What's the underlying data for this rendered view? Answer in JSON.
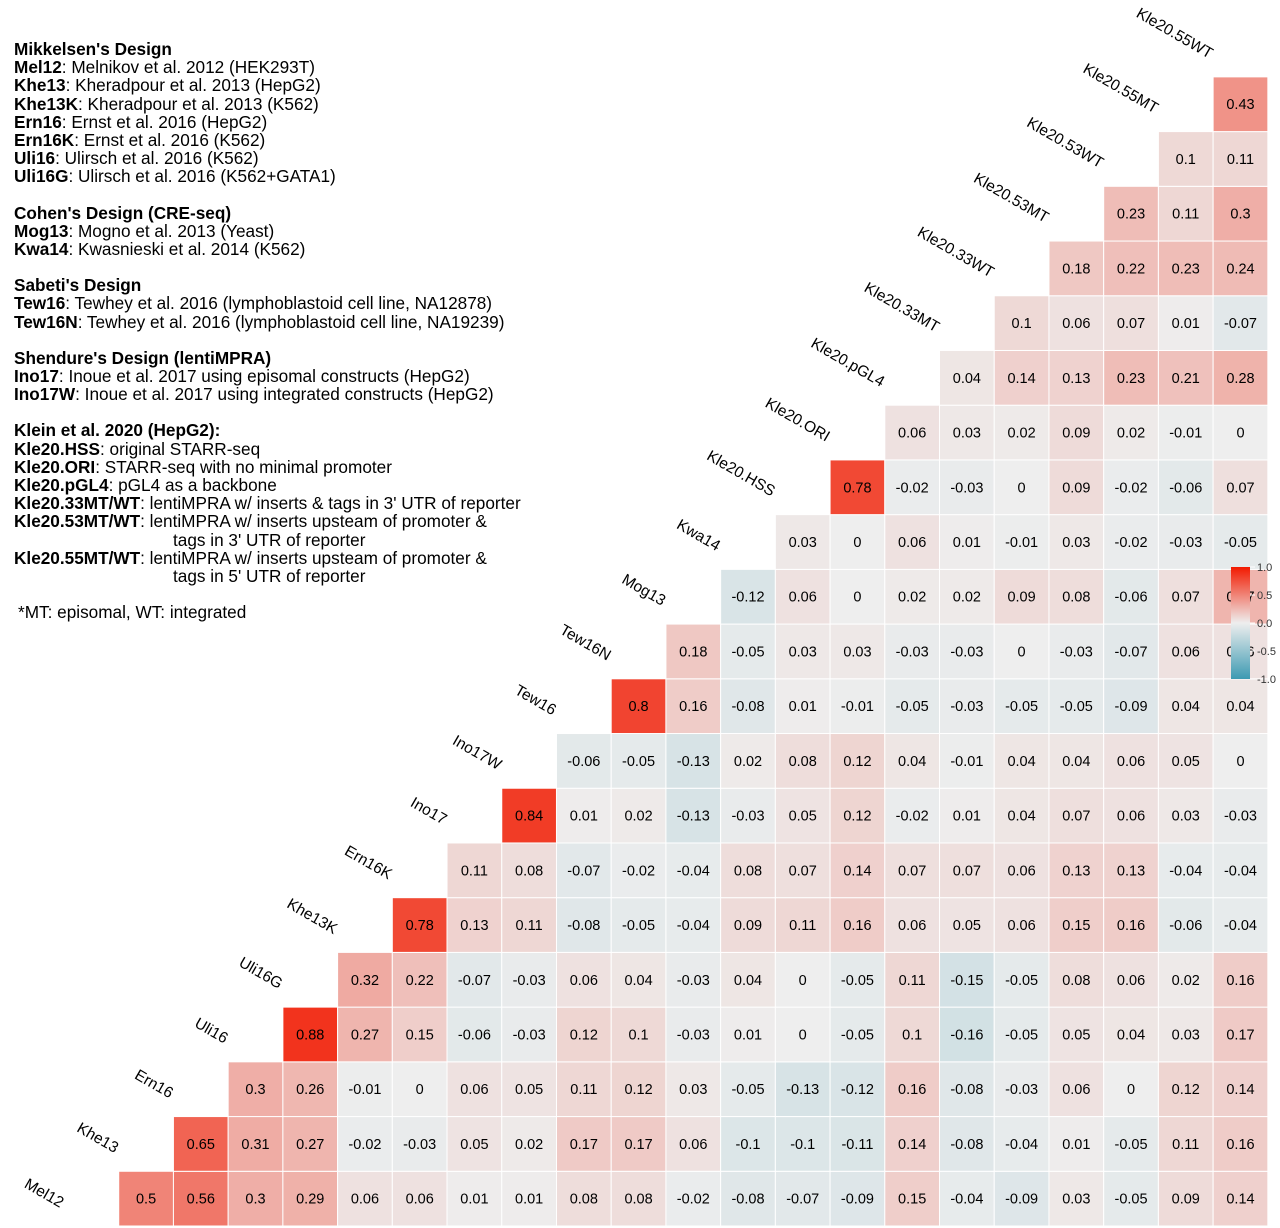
{
  "legend": {
    "sections": [
      {
        "heading": "Mikkelsen's Design",
        "entries": [
          {
            "key": "Mel12",
            "text": ": Melnikov et al. 2012 (HEK293T)"
          },
          {
            "key": "Khe13",
            "text": ": Kheradpour et al. 2013 (HepG2)"
          },
          {
            "key": "Khe13K",
            "text": ": Kheradpour et al. 2013 (K562)"
          },
          {
            "key": "Ern16",
            "text": ": Ernst et al. 2016 (HepG2)"
          },
          {
            "key": "Ern16K",
            "text": ": Ernst et al. 2016 (K562)"
          },
          {
            "key": "Uli16",
            "text": ": Ulirsch et al. 2016 (K562)"
          },
          {
            "key": "Uli16G",
            "text": ": Ulirsch et al. 2016 (K562+GATA1)"
          }
        ]
      },
      {
        "heading": "Cohen's Design (CRE-seq)",
        "entries": [
          {
            "key": "Mog13",
            "text": ": Mogno et al. 2013 (Yeast)"
          },
          {
            "key": "Kwa14",
            "text": ": Kwasnieski et al. 2014 (K562)"
          }
        ]
      },
      {
        "heading": "Sabeti's Design",
        "entries": [
          {
            "key": "Tew16",
            "text": ": Tewhey et al. 2016 (lymphoblastoid cell line, NA12878)"
          },
          {
            "key": "Tew16N",
            "text": ": Tewhey et al. 2016 (lymphoblastoid cell line, NA19239)"
          }
        ]
      },
      {
        "heading": "Shendure's Design (lentiMPRA)",
        "entries": [
          {
            "key": "Ino17",
            "text": ": Inoue et al. 2017 using episomal constructs (HepG2)"
          },
          {
            "key": "Ino17W",
            "text": ": Inoue et al. 2017 using integrated constructs (HepG2)"
          }
        ]
      },
      {
        "heading": "Klein et al. 2020 (HepG2):",
        "entries": [
          {
            "key": "Kle20.HSS",
            "text": ": original STARR-seq"
          },
          {
            "key": "Kle20.ORI",
            "text": ": STARR-seq with no minimal promoter"
          },
          {
            "key": "Kle20.pGL4",
            "text": ": pGL4 as a backbone"
          },
          {
            "key": "Kle20.33MT/WT",
            "text": ": lentiMPRA w/ inserts & tags in 3' UTR of reporter"
          },
          {
            "key": "Kle20.53MT/WT",
            "text": ": lentiMPRA w/ inserts upsteam of promoter &",
            "cont": "tags in 3' UTR of reporter"
          },
          {
            "key": "Kle20.55MT/WT",
            "text": ": lentiMPRA w/ inserts upsteam of promoter &",
            "cont": "tags in 5' UTR of reporter"
          }
        ]
      }
    ],
    "note": "*MT: episomal, WT: integrated"
  },
  "chart_data": {
    "type": "heatmap",
    "title": "",
    "labels": [
      "Mel12",
      "Khe13",
      "Ern16",
      "Uli16",
      "Uli16G",
      "Khe13K",
      "Ern16K",
      "Ino17",
      "Ino17W",
      "Tew16",
      "Tew16N",
      "Mog13",
      "Kwa14",
      "Kle20.HSS",
      "Kle20.ORI",
      "Kle20.pGL4",
      "Kle20.33MT",
      "Kle20.33WT",
      "Kle20.53MT",
      "Kle20.53WT",
      "Kle20.55MT",
      "Kle20.55WT"
    ],
    "values": [
      [
        "0.5",
        "0.56",
        "0.3",
        "0.29",
        "0.06",
        "0.06",
        "0.01",
        "0.01",
        "0.08",
        "0.08",
        "-0.02",
        "-0.08",
        "-0.07",
        "-0.09",
        "0.15",
        "-0.04",
        "-0.09",
        "0.03",
        "-0.05",
        "0.09",
        "0.14"
      ],
      [
        "0.65",
        "0.31",
        "0.27",
        "-0.02",
        "-0.03",
        "0.05",
        "0.02",
        "0.17",
        "0.17",
        "0.06",
        "-0.1",
        "-0.1",
        "-0.11",
        "0.14",
        "-0.08",
        "-0.04",
        "0.01",
        "-0.05",
        "0.11",
        "0.16"
      ],
      [
        "0.3",
        "0.26",
        "-0.01",
        "0",
        "0.06",
        "0.05",
        "0.11",
        "0.12",
        "0.03",
        "-0.05",
        "-0.13",
        "-0.12",
        "0.16",
        "-0.08",
        "-0.03",
        "0.06",
        "0",
        "0.12",
        "0.14"
      ],
      [
        "0.88",
        "0.27",
        "0.15",
        "-0.06",
        "-0.03",
        "0.12",
        "0.1",
        "-0.03",
        "0.01",
        "0",
        "-0.05",
        "0.1",
        "-0.16",
        "-0.05",
        "0.05",
        "0.04",
        "0.03",
        "0.17"
      ],
      [
        "0.32",
        "0.22",
        "-0.07",
        "-0.03",
        "0.06",
        "0.04",
        "-0.03",
        "0.04",
        "0",
        "-0.05",
        "0.11",
        "-0.15",
        "-0.05",
        "0.08",
        "0.06",
        "0.02",
        "0.16"
      ],
      [
        "0.78",
        "0.13",
        "0.11",
        "-0.08",
        "-0.05",
        "-0.04",
        "0.09",
        "0.11",
        "0.16",
        "0.06",
        "0.05",
        "0.06",
        "0.15",
        "0.16",
        "-0.06",
        "-0.04"
      ],
      [
        "0.11",
        "0.08",
        "-0.07",
        "-0.02",
        "-0.04",
        "0.08",
        "0.07",
        "0.14",
        "0.07",
        "0.07",
        "0.06",
        "0.13",
        "0.13",
        "-0.04",
        "-0.04"
      ],
      [
        "0.84",
        "0.01",
        "0.02",
        "-0.13",
        "-0.03",
        "0.05",
        "0.12",
        "-0.02",
        "0.01",
        "0.04",
        "0.07",
        "0.06",
        "0.03",
        "-0.03"
      ],
      [
        "-0.06",
        "-0.05",
        "-0.13",
        "0.02",
        "0.08",
        "0.12",
        "0.04",
        "-0.01",
        "0.04",
        "0.04",
        "0.06",
        "0.05",
        "0"
      ],
      [
        "0.8",
        "0.16",
        "-0.08",
        "0.01",
        "-0.01",
        "-0.05",
        "-0.03",
        "-0.05",
        "-0.05",
        "-0.09",
        "0.04",
        "0.04"
      ],
      [
        "0.18",
        "-0.05",
        "0.03",
        "0.03",
        "-0.03",
        "-0.03",
        "0",
        "-0.03",
        "-0.07",
        "0.06",
        "0.06"
      ],
      [
        "-0.12",
        "0.06",
        "0",
        "0.02",
        "0.02",
        "0.09",
        "0.08",
        "-0.06",
        "0.07",
        "0.27"
      ],
      [
        "0.03",
        "0",
        "0.06",
        "0.01",
        "-0.01",
        "0.03",
        "-0.02",
        "-0.03",
        "-0.05"
      ],
      [
        "0.78",
        "-0.02",
        "-0.03",
        "0",
        "0.09",
        "-0.02",
        "-0.06",
        "0.07"
      ],
      [
        "0.06",
        "0.03",
        "0.02",
        "0.09",
        "0.02",
        "-0.01",
        "0"
      ],
      [
        "0.04",
        "0.14",
        "0.13",
        "0.23",
        "0.21",
        "0.28"
      ],
      [
        "0.1",
        "0.06",
        "0.07",
        "0.01",
        "-0.07"
      ],
      [
        "0.18",
        "0.22",
        "0.23",
        "0.24"
      ],
      [
        "0.23",
        "0.11",
        "0.3"
      ],
      [
        "0.1",
        "0.11"
      ],
      [
        "0.43"
      ]
    ],
    "colorbar": {
      "ticks": [
        "1.0",
        "0.5",
        "0.0",
        "-0.5",
        "-1.0"
      ],
      "range": [
        -1.0,
        1.0
      ],
      "low_color": "#3C9AB2",
      "mid_color": "#EEEEEE",
      "high_color": "#F21A00"
    }
  }
}
